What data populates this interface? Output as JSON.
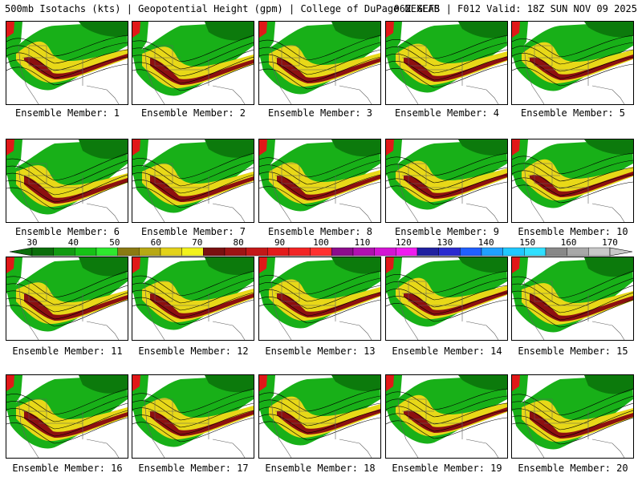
{
  "header": {
    "title_left": "500mb Isotachs (kts) | Geopotential Height (gpm) | College of DuPage NEXLAB",
    "title_right": "06Z GEFS | F012 Valid: 18Z SUN NOV 09 2025"
  },
  "panels": [
    {
      "caption": "Ensemble Member: 1"
    },
    {
      "caption": "Ensemble Member: 2"
    },
    {
      "caption": "Ensemble Member: 3"
    },
    {
      "caption": "Ensemble Member: 4"
    },
    {
      "caption": "Ensemble Member: 5"
    },
    {
      "caption": "Ensemble Member: 6"
    },
    {
      "caption": "Ensemble Member: 7"
    },
    {
      "caption": "Ensemble Member: 8"
    },
    {
      "caption": "Ensemble Member: 9"
    },
    {
      "caption": "Ensemble Member: 10"
    },
    {
      "caption": "Ensemble Member: 11"
    },
    {
      "caption": "Ensemble Member: 12"
    },
    {
      "caption": "Ensemble Member: 13"
    },
    {
      "caption": "Ensemble Member: 14"
    },
    {
      "caption": "Ensemble Member: 15"
    },
    {
      "caption": "Ensemble Member: 16"
    },
    {
      "caption": "Ensemble Member: 17"
    },
    {
      "caption": "Ensemble Member: 18"
    },
    {
      "caption": "Ensemble Member: 19"
    },
    {
      "caption": "Ensemble Member: 20"
    }
  ],
  "colorbar": {
    "labels": [
      "30",
      "40",
      "50",
      "60",
      "70",
      "80",
      "90",
      "100",
      "110",
      "120",
      "130",
      "140",
      "150",
      "160",
      "170"
    ],
    "colors": [
      "#0b6e0b",
      "#119a11",
      "#16c216",
      "#2ee82e",
      "#8a7a12",
      "#b8a814",
      "#e3d21a",
      "#f2f21c",
      "#7a1010",
      "#9e1414",
      "#c41818",
      "#e31c1c",
      "#f22424",
      "#ff3030",
      "#8c0c8c",
      "#b010b0",
      "#d414d4",
      "#f01cf0",
      "#2020a0",
      "#2a2ad0",
      "#2060ff",
      "#20a0ff",
      "#20c8ff",
      "#30e0ff",
      "#888888",
      "#a8a8a8",
      "#c8c8c8"
    ]
  },
  "map_colors": {
    "green": "#18b018",
    "dark_green": "#0c7a0c",
    "yellow": "#e8d818",
    "olive": "#9a8a14",
    "dark_red": "#8c1010",
    "red": "#e01818",
    "contour": "#000000",
    "border": "#606060"
  }
}
